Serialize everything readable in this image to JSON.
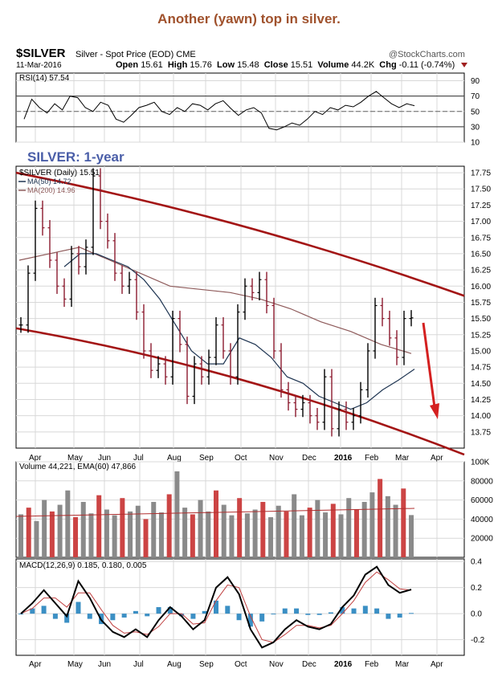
{
  "header": {
    "title": "Another (yawn) top in silver.",
    "symbol": "$SILVER",
    "description": "Silver - Spot Price (EOD) CME",
    "watermark": "@StockCharts.com",
    "date": "11-Mar-2016",
    "open_label": "Open",
    "open": "15.61",
    "high_label": "High",
    "high": "15.76",
    "low_label": "Low",
    "low": "15.48",
    "close_label": "Close",
    "close": "15.51",
    "volume_label": "Volume",
    "volume": "44.2K",
    "chg_label": "Chg",
    "chg": "-0.11 (-0.74%)"
  },
  "colors": {
    "price_up": "#000000",
    "price_down": "#8b1a2e",
    "channel": "#a31515",
    "ma50": "#1f3552",
    "ma200": "#8e5a5a",
    "volume_up": "#8a8a8a",
    "volume_down": "#cc4444",
    "macd_hist": "#3b8fc4",
    "arrow": "#d42020",
    "annotation": "#4a5ea8"
  },
  "chart_data": [
    {
      "type": "line",
      "panel": "rsi",
      "legend": "RSI(14) 57.54",
      "ylim": [
        10,
        100
      ],
      "ticks": [
        90,
        70,
        50,
        30,
        10
      ],
      "tick_labels": [
        "90",
        "70",
        "50",
        "30",
        "10"
      ],
      "reference_lines": [
        70,
        50,
        30
      ],
      "series": [
        {
          "values": [
            40,
            66,
            55,
            48,
            60,
            52,
            70,
            68,
            55,
            50,
            62,
            58,
            40,
            36,
            45,
            55,
            58,
            62,
            50,
            46,
            55,
            50,
            60,
            58,
            52,
            60,
            64,
            54,
            45,
            52,
            55,
            48,
            28,
            26,
            30,
            35,
            32,
            40,
            50,
            46,
            55,
            52,
            58,
            56,
            62,
            70,
            76,
            68,
            60,
            55,
            60,
            57.54
          ]
        }
      ]
    },
    {
      "type": "line",
      "panel": "price",
      "annotation": "SILVER: 1-year",
      "legend": [
        "$SILVER (Daily) 15.51",
        "MA(50) 14.72",
        "MA(200) 14.96"
      ],
      "ylim": [
        13.5,
        17.85
      ],
      "ticks": [
        17.75,
        17.5,
        17.25,
        17.0,
        16.75,
        16.5,
        16.25,
        16.0,
        15.75,
        15.5,
        15.25,
        15.0,
        14.75,
        14.5,
        14.25,
        14.0,
        13.75
      ],
      "tick_labels": [
        "17.75",
        "17.50",
        "17.25",
        "17.00",
        "16.75",
        "16.50",
        "16.25",
        "16.00",
        "15.75",
        "15.50",
        "15.25",
        "15.00",
        "14.75",
        "14.50",
        "14.25",
        "14.00",
        "13.75"
      ],
      "x_labels": [
        "Apr",
        "May",
        "Jun",
        "Jul",
        "Aug",
        "Sep",
        "Oct",
        "Nov",
        "Dec",
        "2016",
        "Feb",
        "Mar",
        "Apr"
      ],
      "series": [
        {
          "name": "$SILVER",
          "values": [
            15.4,
            16.2,
            17.2,
            16.9,
            16.4,
            16.0,
            15.8,
            16.5,
            16.3,
            16.6,
            17.7,
            17.0,
            16.7,
            16.2,
            16.0,
            16.1,
            15.6,
            15.0,
            14.7,
            14.8,
            14.6,
            15.5,
            15.1,
            14.3,
            14.8,
            14.6,
            14.9,
            15.4,
            15.0,
            14.6,
            15.6,
            16.0,
            15.9,
            16.1,
            15.7,
            15.0,
            14.4,
            14.2,
            14.1,
            14.2,
            14.0,
            13.9,
            14.6,
            13.8,
            14.1,
            13.9,
            14.0,
            14.4,
            15.0,
            15.7,
            15.5,
            15.2,
            14.9,
            15.5,
            15.51
          ]
        },
        {
          "name": "MA(50)",
          "values": [
            16.3,
            16.5,
            16.5,
            16.4,
            16.3,
            16.1,
            15.8,
            15.4,
            15.0,
            14.8,
            14.8,
            15.2,
            15.1,
            14.9,
            14.6,
            14.5,
            14.3,
            14.2,
            14.1,
            14.2,
            14.4,
            14.55,
            14.72
          ]
        },
        {
          "name": "MA(200)",
          "values": [
            16.4,
            16.5,
            16.6,
            16.4,
            16.2,
            16.0,
            15.95,
            15.9,
            15.8,
            15.65,
            15.45,
            15.3,
            15.1,
            14.96
          ]
        }
      ],
      "channel": {
        "upper": [
          [
            0,
            17.75
          ],
          [
            1,
            15.85
          ]
        ],
        "lower": [
          [
            0,
            15.35
          ],
          [
            1,
            13.4
          ]
        ]
      }
    },
    {
      "type": "bar",
      "panel": "volume",
      "legend": "Volume 44,221, EMA(60) 47,866",
      "ylim": [
        0,
        100000
      ],
      "ticks": [
        100000,
        80000,
        60000,
        40000,
        20000
      ],
      "tick_labels": [
        "100K",
        "80000",
        "60000",
        "40000",
        "20000"
      ],
      "series": [
        {
          "name": "Volume",
          "values": [
            45000,
            52000,
            38000,
            60000,
            48000,
            55000,
            70000,
            42000,
            58000,
            46000,
            65000,
            50000,
            44000,
            62000,
            48000,
            54000,
            40000,
            58000,
            47000,
            66000,
            90000,
            52000,
            45000,
            60000,
            48000,
            70000,
            55000,
            44000,
            62000,
            46000,
            50000,
            58000,
            42000,
            54000,
            48000,
            66000,
            44000,
            52000,
            60000,
            47000,
            56000,
            45000,
            62000,
            50000,
            58000,
            68000,
            82000,
            64000,
            55000,
            72000,
            44221
          ]
        }
      ],
      "ema60": 47866
    },
    {
      "type": "line",
      "panel": "macd",
      "legend": "MACD(12,26,9) 0.185, 0.180, 0.005",
      "ylim": [
        -0.32,
        0.42
      ],
      "ticks": [
        0.4,
        0.2,
        0.0,
        -0.2
      ],
      "tick_labels": [
        "0.4",
        "0.2",
        "0.0",
        "-0.2"
      ],
      "x_labels": [
        "Apr",
        "May",
        "Jun",
        "Jul",
        "Aug",
        "Sep",
        "Oct",
        "Nov",
        "Dec",
        "2016",
        "Feb",
        "Mar",
        "Apr"
      ],
      "series": [
        {
          "name": "MACD",
          "values": [
            0.0,
            0.08,
            0.18,
            0.08,
            -0.02,
            0.25,
            0.12,
            -0.05,
            -0.14,
            -0.18,
            -0.12,
            -0.18,
            -0.05,
            0.05,
            -0.02,
            -0.12,
            -0.05,
            0.2,
            0.28,
            0.15,
            -0.12,
            -0.26,
            -0.22,
            -0.12,
            -0.05,
            -0.1,
            -0.12,
            -0.08,
            0.05,
            0.14,
            0.3,
            0.36,
            0.22,
            0.16,
            0.185
          ]
        },
        {
          "name": "Signal",
          "values": [
            0.0,
            0.04,
            0.12,
            0.12,
            0.05,
            0.16,
            0.16,
            0.03,
            -0.09,
            -0.15,
            -0.14,
            -0.16,
            -0.1,
            0.0,
            0.0,
            -0.08,
            -0.07,
            0.1,
            0.22,
            0.2,
            -0.02,
            -0.2,
            -0.22,
            -0.16,
            -0.09,
            -0.09,
            -0.11,
            -0.09,
            0.0,
            0.1,
            0.24,
            0.32,
            0.26,
            0.19,
            0.18
          ]
        }
      ],
      "histogram": [
        0.0,
        0.04,
        0.06,
        -0.04,
        -0.07,
        0.09,
        -0.04,
        -0.08,
        -0.05,
        -0.03,
        0.02,
        -0.02,
        0.05,
        0.05,
        -0.02,
        -0.04,
        0.02,
        0.1,
        0.06,
        -0.05,
        -0.1,
        -0.06,
        0.0,
        0.04,
        0.04,
        -0.01,
        -0.01,
        0.01,
        0.05,
        0.04,
        0.06,
        0.04,
        -0.04,
        -0.03,
        0.005
      ]
    }
  ]
}
